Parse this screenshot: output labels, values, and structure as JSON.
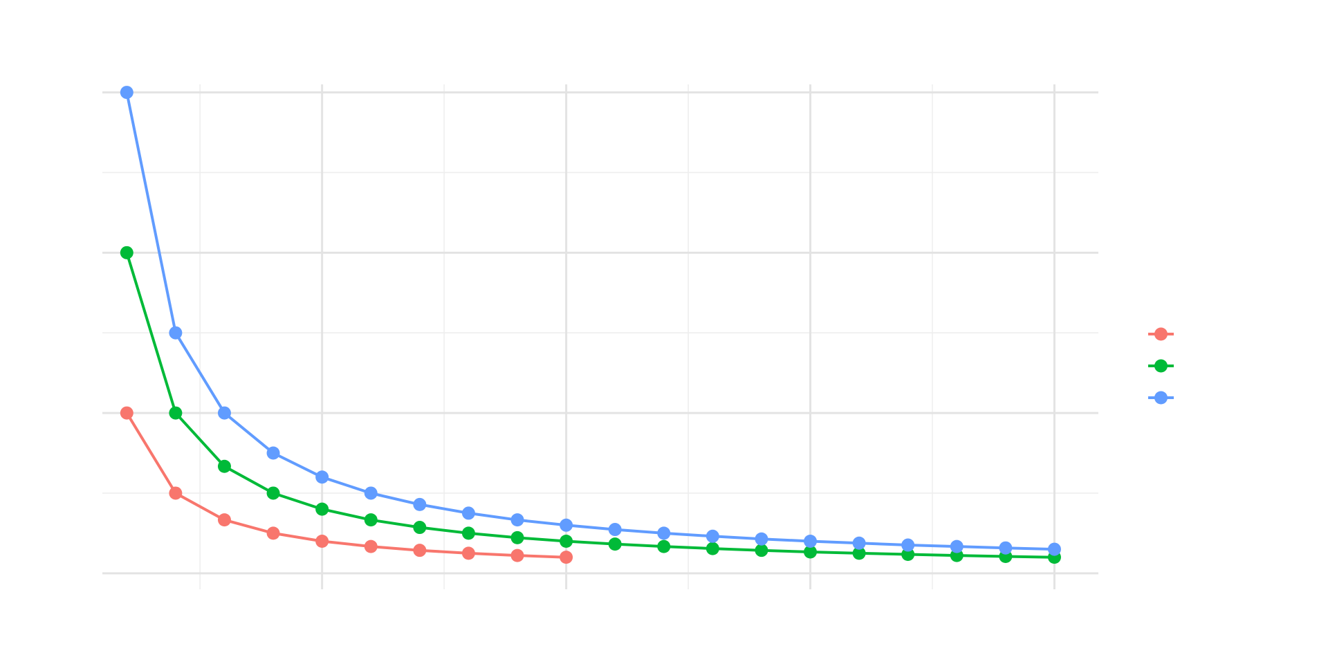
{
  "chart_data": {
    "type": "line",
    "title": "",
    "xlabel": "",
    "ylabel": "",
    "xlim": [
      0.5,
      20.9
    ],
    "ylim": [
      -0.1,
      3.05
    ],
    "x_major_ticks": [
      5,
      10,
      15,
      20
    ],
    "x_minor_ticks": [
      2.5,
      7.5,
      12.5,
      17.5
    ],
    "y_major_ticks": [
      0,
      1,
      2,
      3
    ],
    "y_minor_ticks": [
      0.5,
      1.5,
      2.5
    ],
    "grid": true,
    "legend_position": "right",
    "series": [
      {
        "color": "#F8766D",
        "x": [
          1,
          2,
          3,
          4,
          5,
          6,
          7,
          8,
          9,
          10
        ],
        "values": [
          1.0,
          0.5,
          0.333,
          0.25,
          0.2,
          0.167,
          0.143,
          0.125,
          0.111,
          0.1
        ]
      },
      {
        "color": "#00BA38",
        "x": [
          1,
          2,
          3,
          4,
          5,
          6,
          7,
          8,
          9,
          10,
          11,
          12,
          13,
          14,
          15,
          16,
          17,
          18,
          19,
          20
        ],
        "values": [
          2.0,
          1.0,
          0.667,
          0.5,
          0.4,
          0.333,
          0.286,
          0.25,
          0.222,
          0.2,
          0.182,
          0.167,
          0.154,
          0.143,
          0.133,
          0.125,
          0.118,
          0.111,
          0.105,
          0.1
        ]
      },
      {
        "color": "#619CFF",
        "x": [
          1,
          2,
          3,
          4,
          5,
          6,
          7,
          8,
          9,
          10,
          11,
          12,
          13,
          14,
          15,
          16,
          17,
          18,
          19,
          20
        ],
        "values": [
          3.0,
          1.5,
          1.0,
          0.75,
          0.6,
          0.5,
          0.429,
          0.375,
          0.333,
          0.3,
          0.273,
          0.25,
          0.231,
          0.214,
          0.2,
          0.188,
          0.176,
          0.167,
          0.158,
          0.15
        ]
      }
    ]
  }
}
